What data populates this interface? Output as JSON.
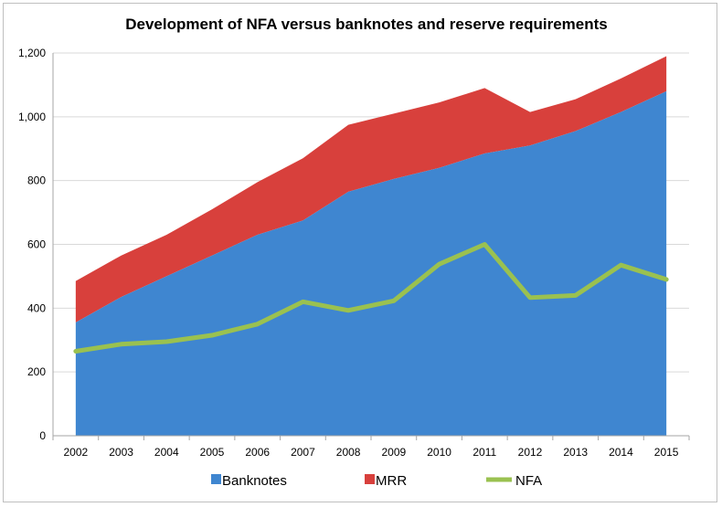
{
  "chart_data": {
    "type": "area",
    "title": "Development of NFA versus banknotes and reserve requirements",
    "xlabel": "",
    "ylabel": "",
    "categories": [
      "2002",
      "2003",
      "2004",
      "2005",
      "2006",
      "2007",
      "2008",
      "2009",
      "2010",
      "2011",
      "2012",
      "2013",
      "2014",
      "2015"
    ],
    "ylim": [
      0,
      1200
    ],
    "yticks": [
      0,
      200,
      400,
      600,
      800,
      1000,
      1200
    ],
    "ytick_labels": [
      "0",
      "200",
      "400",
      "600",
      "800",
      "1,000",
      "1,200"
    ],
    "grid": true,
    "legend_position": "bottom",
    "series": [
      {
        "name": "Banknotes",
        "kind": "stacked-area",
        "color": "#3f86d0",
        "values": [
          355,
          435,
          500,
          565,
          630,
          675,
          765,
          805,
          840,
          885,
          910,
          955,
          1015,
          1080
        ]
      },
      {
        "name": "MRR",
        "kind": "stacked-area",
        "color": "#d8403c",
        "values": [
          130,
          130,
          130,
          145,
          165,
          195,
          210,
          205,
          205,
          205,
          105,
          100,
          105,
          110
        ]
      },
      {
        "name": "NFA",
        "kind": "line",
        "color": "#9ac150",
        "values": [
          265,
          287,
          295,
          315,
          350,
          420,
          393,
          423,
          538,
          600,
          433,
          440,
          535,
          490
        ]
      }
    ]
  }
}
